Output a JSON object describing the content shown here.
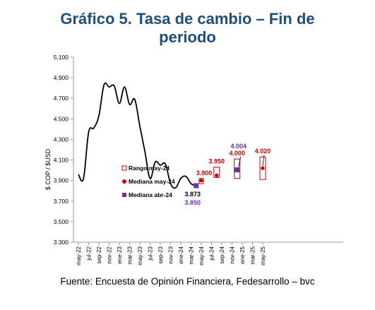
{
  "title_line1": "Gráfico 5. Tasa de cambio – Fin de",
  "title_line2": "periodo",
  "source": "Fuente: Encuesta de Opinión Financiera, Fedesarrollo – bvc",
  "colors": {
    "line": "#000000",
    "red": "#c00000",
    "purple": "#7030a0",
    "title": "#1f4e79"
  },
  "chart_data": {
    "type": "line",
    "ylabel": "$ COP / $USD",
    "ylim": [
      3300,
      5100
    ],
    "yticks": [
      3300,
      3500,
      3700,
      3900,
      4100,
      4300,
      4500,
      4700,
      4900,
      5100
    ],
    "ytick_labels": [
      "3.300",
      "3.500",
      "3.700",
      "3.900",
      "4.100",
      "4.300",
      "4.500",
      "4.700",
      "4.900",
      "5.100"
    ],
    "xtick_labels": [
      "may-22",
      "jul-22",
      "sep-22",
      "nov-22",
      "ene-23",
      "mar-23",
      "may-23",
      "jul-23",
      "sep-23",
      "nov-23",
      "ene-24",
      "mar-24",
      "may-24",
      "jul-24",
      "sep-24",
      "nov-24",
      "ene-25",
      "mar-25",
      "may-25"
    ],
    "series": [
      {
        "x": [
          "may-22",
          "jun-22",
          "jul-22",
          "ago-22",
          "sep-22",
          "oct-22",
          "nov-22",
          "dic-22",
          "ene-23",
          "feb-23",
          "mar-23",
          "abr-23",
          "may-23",
          "jun-23",
          "jul-23",
          "ago-23",
          "sep-23",
          "oct-23",
          "nov-23",
          "dic-23",
          "ene-24",
          "feb-24",
          "mar-24",
          "abr-24"
        ],
        "values": [
          3960,
          3920,
          4370,
          4410,
          4530,
          4830,
          4810,
          4820,
          4650,
          4810,
          4640,
          4690,
          4430,
          4180,
          3920,
          4080,
          4050,
          4060,
          3870,
          3830,
          3920,
          3940,
          3870,
          3850
        ]
      }
    ],
    "annotations": [
      {
        "period": "abr-24",
        "value": 3873,
        "label": "3.873",
        "color": "#000000"
      },
      {
        "period": "abr-24",
        "value": 3850,
        "label": "3.850",
        "color": "#7030a0"
      }
    ],
    "forecast": [
      {
        "period": "may-24",
        "range": [
          3870,
          3920
        ],
        "median_may": 3900,
        "median_label": "3.900"
      },
      {
        "period": "ago-24",
        "range": [
          3930,
          4030
        ],
        "median_may": 3950,
        "median_label": "3.950"
      },
      {
        "period": "dic-24",
        "range": [
          3920,
          4110
        ],
        "median_may": 4000,
        "median_label": "4.000",
        "median_abr": 4004,
        "median_abr_label": "4.004"
      },
      {
        "period": "may-25",
        "range": [
          3910,
          4130
        ],
        "median_may": 4020,
        "median_label": "4.020"
      }
    ],
    "legend": [
      {
        "marker": "open-square",
        "label": "Rango may-24",
        "color": "#c00000"
      },
      {
        "marker": "circle",
        "label": "Mediana may-24",
        "color": "#c00000"
      },
      {
        "marker": "square",
        "label": "Mediana abr-24",
        "color": "#7030a0"
      }
    ],
    "legend_position": "center-left"
  }
}
